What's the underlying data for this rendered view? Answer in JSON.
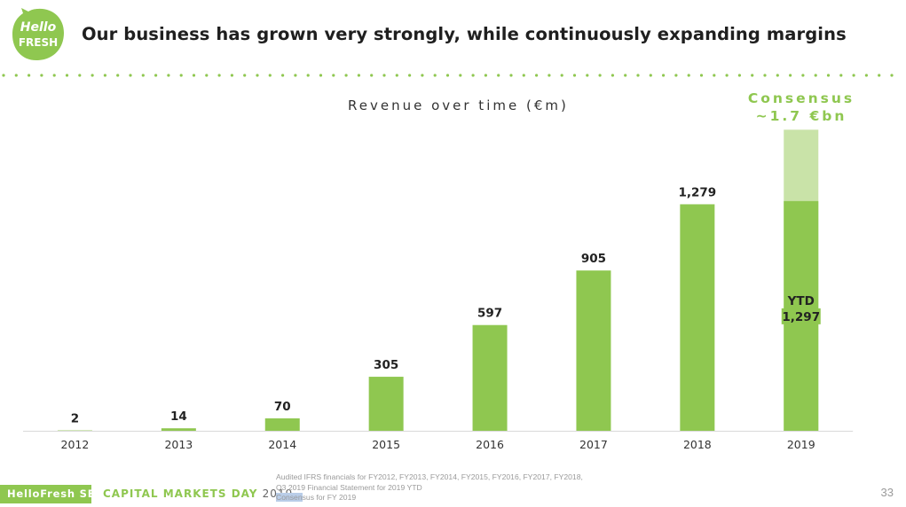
{
  "logo": {
    "line1": "Hello",
    "line2": "FRESH"
  },
  "header": {
    "title": "Our business has grown very strongly, while continuously expanding margins"
  },
  "chart_data": {
    "type": "bar",
    "title": "Revenue over time (€m)",
    "xlabel": "",
    "ylabel": "",
    "ylim": [
      0,
      1750
    ],
    "categories": [
      "2012",
      "2013",
      "2014",
      "2015",
      "2016",
      "2017",
      "2018",
      "2019"
    ],
    "values": [
      2,
      14,
      70,
      305,
      597,
      905,
      1279,
      1297
    ],
    "value_labels": [
      "2",
      "14",
      "70",
      "305",
      "597",
      "905",
      "1,279",
      "1,297"
    ],
    "ytd_label": "YTD",
    "consensus": {
      "category": "2019",
      "value": 1700,
      "line1": "Consensus",
      "line2": "~1.7 €bn"
    },
    "colors": {
      "bar": "#8fc750",
      "consensus": "#c9e3a8",
      "axis": "#d9d9d9"
    },
    "grid": false,
    "legend": "none"
  },
  "footer": {
    "brand": "HelloFresh SE",
    "event": "CAPITAL MARKETS DAY",
    "year": "2019",
    "sources": [
      "Audited IFRS financials for FY2012, FY2013, FY2014, FY2015, FY2016, FY2017, FY2018,",
      "Q3 2019 Financial Statement for 2019 YTD"
    ],
    "source3_highlight": "Consen",
    "source3_rest": "sus  for FY 2019",
    "page_number": "33"
  }
}
